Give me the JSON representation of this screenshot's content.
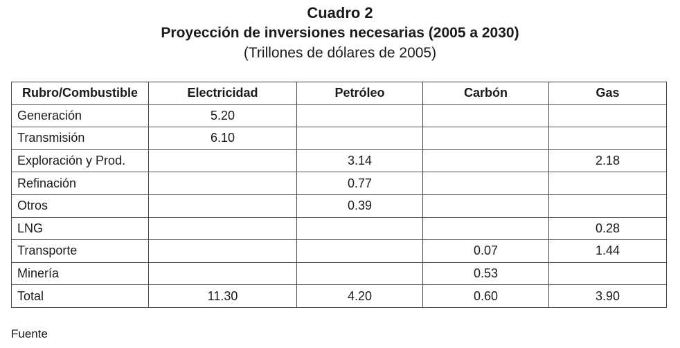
{
  "title": "Cuadro 2",
  "subtitle": "Proyección de inversiones necesarias (2005 a 2030)",
  "units": "(Trillones de dólares de 2005)",
  "table": {
    "headers": [
      "Rubro/Combustible",
      "Electricidad",
      "Petróleo",
      "Carbón",
      "Gas"
    ],
    "rows": [
      [
        "Generación",
        "5.20",
        "",
        "",
        ""
      ],
      [
        "Transmisión",
        "6.10",
        "",
        "",
        ""
      ],
      [
        "Exploración y Prod.",
        "",
        "3.14",
        "",
        "2.18"
      ],
      [
        "Refinación",
        "",
        "0.77",
        "",
        ""
      ],
      [
        "Otros",
        "",
        "0.39",
        "",
        ""
      ],
      [
        "LNG",
        "",
        "",
        "",
        "0.28"
      ],
      [
        "Transporte",
        "",
        "",
        "0.07",
        "1.44"
      ],
      [
        "Minería",
        "",
        "",
        "0.53",
        ""
      ],
      [
        "Total",
        "11.30",
        "4.20",
        "0.60",
        "3.90"
      ]
    ]
  },
  "source": "Fuente"
}
